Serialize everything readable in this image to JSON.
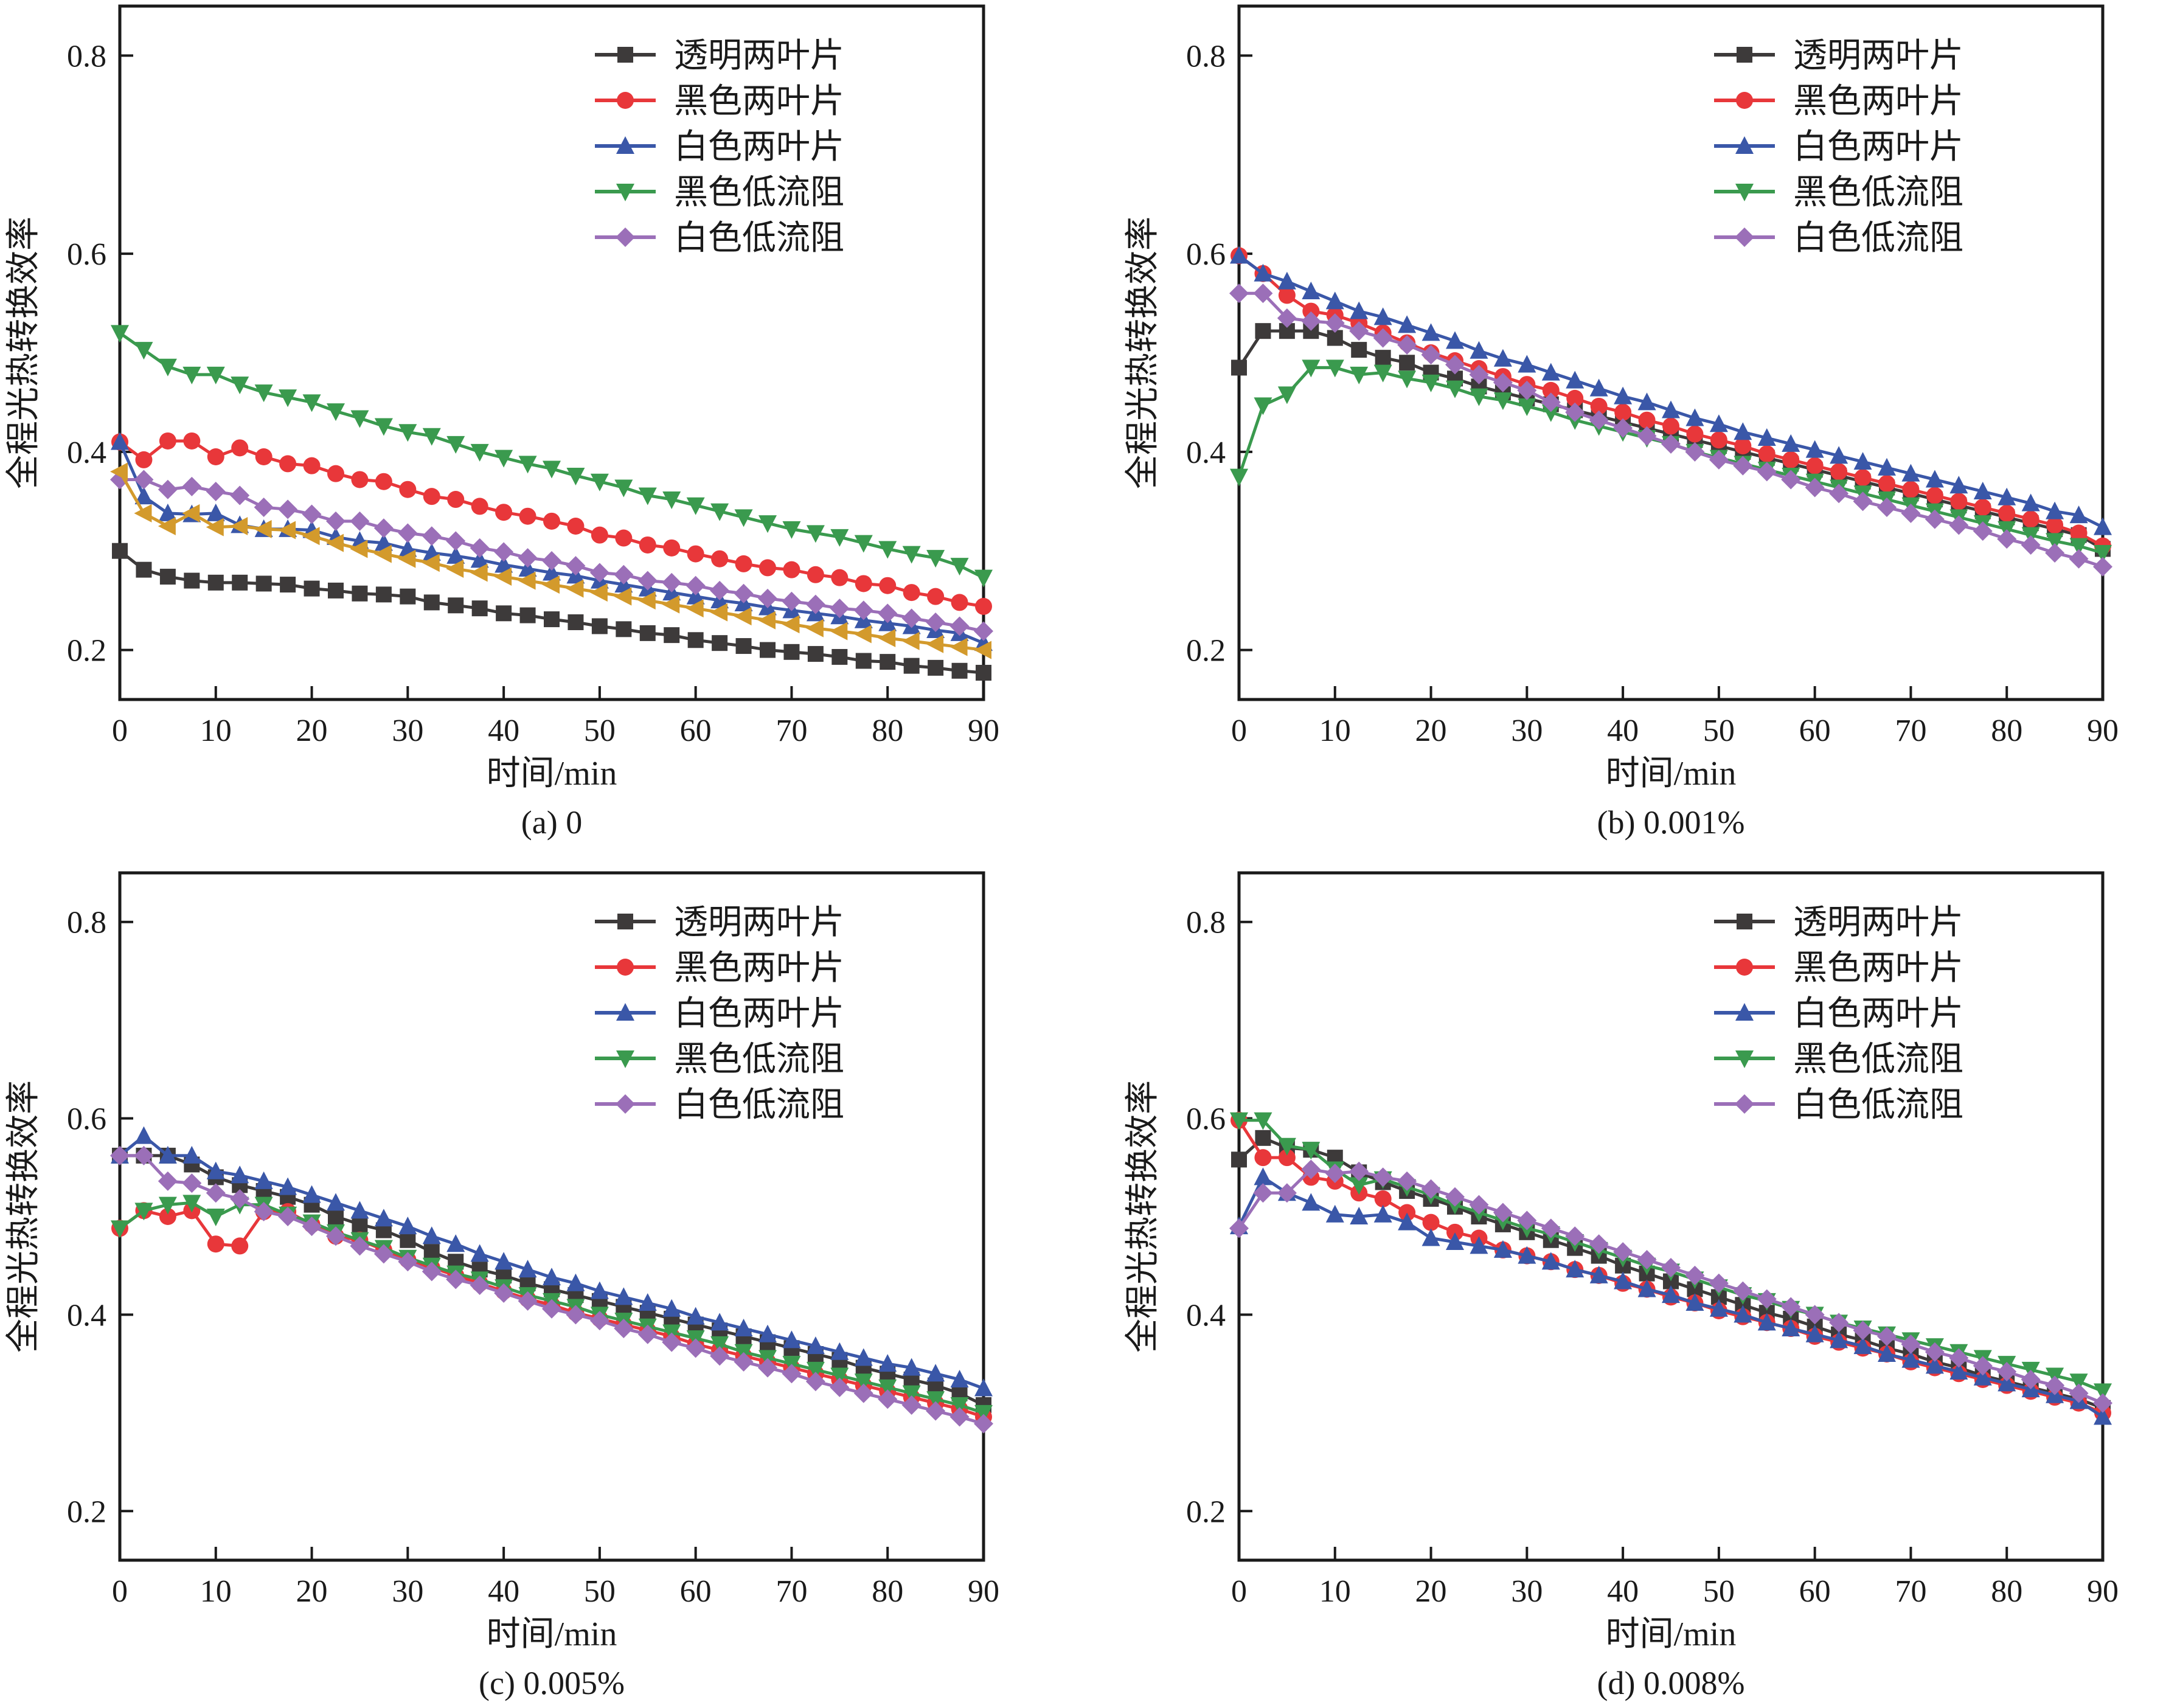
{
  "chart_data": [
    {
      "type": "line",
      "caption": "(a) 0",
      "xlabel": "时间/min",
      "ylabel": "全程光热转换效率",
      "xlim": [
        0,
        90
      ],
      "ylim": [
        0.15,
        0.85
      ],
      "xticks": [
        0,
        10,
        20,
        30,
        40,
        50,
        60,
        70,
        80,
        90
      ],
      "yticks": [
        0.2,
        0.4,
        0.6,
        0.8
      ],
      "legend_position": "top-right",
      "x_step": 2.5,
      "series": [
        {
          "name": "透明两叶片",
          "color": "#3d3a3a",
          "marker": "square",
          "values": [
            0.3,
            0.281,
            0.274,
            0.27,
            0.268,
            0.268,
            0.267,
            0.266,
            0.262,
            0.26,
            0.257,
            0.256,
            0.254,
            0.248,
            0.245,
            0.242,
            0.237,
            0.235,
            0.231,
            0.228,
            0.224,
            0.221,
            0.217,
            0.215,
            0.21,
            0.207,
            0.204,
            0.2,
            0.198,
            0.196,
            0.193,
            0.189,
            0.188,
            0.184,
            0.182,
            0.179,
            0.177
          ]
        },
        {
          "name": "黑色两叶片",
          "color": "#e8373a",
          "marker": "circle",
          "values": [
            0.41,
            0.392,
            0.411,
            0.411,
            0.395,
            0.404,
            0.395,
            0.388,
            0.386,
            0.378,
            0.372,
            0.37,
            0.362,
            0.355,
            0.352,
            0.345,
            0.339,
            0.335,
            0.33,
            0.325,
            0.316,
            0.313,
            0.306,
            0.303,
            0.297,
            0.292,
            0.287,
            0.283,
            0.281,
            0.276,
            0.273,
            0.267,
            0.265,
            0.258,
            0.254,
            0.248,
            0.244
          ]
        },
        {
          "name": "白色两叶片",
          "color": "#3a57a8",
          "marker": "triangle-up",
          "values": [
            0.41,
            0.355,
            0.338,
            0.337,
            0.338,
            0.326,
            0.322,
            0.322,
            0.321,
            0.314,
            0.31,
            0.308,
            0.302,
            0.298,
            0.295,
            0.291,
            0.286,
            0.282,
            0.278,
            0.275,
            0.27,
            0.266,
            0.262,
            0.258,
            0.254,
            0.25,
            0.247,
            0.243,
            0.24,
            0.237,
            0.234,
            0.23,
            0.227,
            0.224,
            0.22,
            0.217,
            0.207
          ]
        },
        {
          "name": "黑色低流阻",
          "color": "#3a9a4e",
          "marker": "triangle-down",
          "values": [
            0.52,
            0.503,
            0.486,
            0.478,
            0.478,
            0.468,
            0.46,
            0.455,
            0.45,
            0.441,
            0.434,
            0.426,
            0.42,
            0.416,
            0.408,
            0.4,
            0.394,
            0.388,
            0.383,
            0.376,
            0.37,
            0.364,
            0.356,
            0.352,
            0.346,
            0.34,
            0.334,
            0.328,
            0.322,
            0.318,
            0.314,
            0.308,
            0.302,
            0.297,
            0.293,
            0.285,
            0.273
          ]
        },
        {
          "name": "白色低流阻",
          "color": "#9b6fb8",
          "marker": "diamond",
          "values": [
            0.372,
            0.372,
            0.362,
            0.365,
            0.36,
            0.356,
            0.344,
            0.342,
            0.337,
            0.33,
            0.33,
            0.323,
            0.318,
            0.315,
            0.31,
            0.303,
            0.299,
            0.293,
            0.29,
            0.285,
            0.278,
            0.276,
            0.27,
            0.268,
            0.265,
            0.26,
            0.257,
            0.252,
            0.249,
            0.246,
            0.242,
            0.24,
            0.237,
            0.232,
            0.228,
            0.224,
            0.219
          ]
        },
        {
          "name": "",
          "color": "#d39a2c",
          "marker": "triangle-left",
          "values": [
            0.38,
            0.338,
            0.325,
            0.338,
            0.324,
            0.325,
            0.322,
            0.321,
            0.315,
            0.308,
            0.302,
            0.297,
            0.292,
            0.288,
            0.282,
            0.278,
            0.274,
            0.27,
            0.266,
            0.262,
            0.258,
            0.254,
            0.25,
            0.246,
            0.242,
            0.238,
            0.234,
            0.23,
            0.226,
            0.222,
            0.219,
            0.216,
            0.212,
            0.209,
            0.206,
            0.203,
            0.2
          ]
        }
      ]
    },
    {
      "type": "line",
      "caption": "(b) 0.001%",
      "xlabel": "时间/min",
      "ylabel": "全程光热转换效率",
      "xlim": [
        0,
        90
      ],
      "ylim": [
        0.15,
        0.85
      ],
      "xticks": [
        0,
        10,
        20,
        30,
        40,
        50,
        60,
        70,
        80,
        90
      ],
      "yticks": [
        0.2,
        0.4,
        0.6,
        0.8
      ],
      "legend_position": "top-right",
      "x_step": 2.5,
      "series": [
        {
          "name": "透明两叶片",
          "color": "#3d3a3a",
          "marker": "square",
          "values": [
            0.485,
            0.522,
            0.522,
            0.522,
            0.515,
            0.503,
            0.495,
            0.49,
            0.48,
            0.474,
            0.466,
            0.46,
            0.454,
            0.448,
            0.442,
            0.436,
            0.43,
            0.424,
            0.418,
            0.412,
            0.406,
            0.4,
            0.394,
            0.388,
            0.382,
            0.376,
            0.37,
            0.364,
            0.358,
            0.352,
            0.346,
            0.34,
            0.334,
            0.328,
            0.322,
            0.316,
            0.302
          ]
        },
        {
          "name": "黑色两叶片",
          "color": "#e8373a",
          "marker": "circle",
          "values": [
            0.598,
            0.58,
            0.558,
            0.542,
            0.538,
            0.53,
            0.52,
            0.51,
            0.5,
            0.492,
            0.484,
            0.476,
            0.468,
            0.462,
            0.454,
            0.446,
            0.44,
            0.432,
            0.426,
            0.418,
            0.412,
            0.406,
            0.398,
            0.392,
            0.386,
            0.38,
            0.374,
            0.368,
            0.362,
            0.356,
            0.35,
            0.344,
            0.338,
            0.332,
            0.326,
            0.318,
            0.305
          ]
        },
        {
          "name": "白色两叶片",
          "color": "#3a57a8",
          "marker": "triangle-up",
          "values": [
            0.598,
            0.58,
            0.572,
            0.562,
            0.552,
            0.542,
            0.536,
            0.528,
            0.52,
            0.512,
            0.502,
            0.494,
            0.488,
            0.48,
            0.472,
            0.464,
            0.456,
            0.45,
            0.442,
            0.434,
            0.428,
            0.42,
            0.414,
            0.408,
            0.402,
            0.396,
            0.39,
            0.384,
            0.378,
            0.372,
            0.366,
            0.36,
            0.354,
            0.348,
            0.34,
            0.336,
            0.324
          ]
        },
        {
          "name": "黑色低流阻",
          "color": "#3a9a4e",
          "marker": "triangle-down",
          "values": [
            0.375,
            0.447,
            0.458,
            0.485,
            0.485,
            0.478,
            0.48,
            0.474,
            0.47,
            0.464,
            0.456,
            0.452,
            0.446,
            0.44,
            0.432,
            0.426,
            0.42,
            0.414,
            0.408,
            0.4,
            0.394,
            0.388,
            0.382,
            0.376,
            0.37,
            0.364,
            0.358,
            0.352,
            0.346,
            0.34,
            0.334,
            0.328,
            0.322,
            0.316,
            0.31,
            0.305,
            0.298
          ]
        },
        {
          "name": "白色低流阻",
          "color": "#9b6fb8",
          "marker": "diamond",
          "values": [
            0.56,
            0.56,
            0.535,
            0.532,
            0.53,
            0.522,
            0.515,
            0.508,
            0.498,
            0.488,
            0.478,
            0.47,
            0.462,
            0.45,
            0.44,
            0.432,
            0.424,
            0.416,
            0.408,
            0.4,
            0.392,
            0.386,
            0.38,
            0.372,
            0.364,
            0.358,
            0.35,
            0.344,
            0.338,
            0.332,
            0.326,
            0.32,
            0.312,
            0.306,
            0.298,
            0.292,
            0.284
          ]
        }
      ]
    },
    {
      "type": "line",
      "caption": "(c) 0.005%",
      "xlabel": "时间/min",
      "ylabel": "全程光热转换效率",
      "xlim": [
        0,
        90
      ],
      "ylim": [
        0.15,
        0.85
      ],
      "xticks": [
        0,
        10,
        20,
        30,
        40,
        50,
        60,
        70,
        80,
        90
      ],
      "yticks": [
        0.2,
        0.4,
        0.6,
        0.8
      ],
      "legend_position": "top-right",
      "x_step": 2.5,
      "series": [
        {
          "name": "透明两叶片",
          "color": "#3d3a3a",
          "marker": "square",
          "values": [
            0.562,
            0.562,
            0.562,
            0.553,
            0.54,
            0.532,
            0.526,
            0.52,
            0.512,
            0.5,
            0.492,
            0.486,
            0.476,
            0.464,
            0.454,
            0.446,
            0.44,
            0.432,
            0.426,
            0.42,
            0.414,
            0.408,
            0.402,
            0.396,
            0.39,
            0.384,
            0.378,
            0.372,
            0.366,
            0.36,
            0.354,
            0.346,
            0.34,
            0.334,
            0.328,
            0.32,
            0.308
          ]
        },
        {
          "name": "黑色两叶片",
          "color": "#e8373a",
          "marker": "circle",
          "values": [
            0.488,
            0.506,
            0.5,
            0.506,
            0.472,
            0.47,
            0.505,
            0.505,
            0.492,
            0.48,
            0.476,
            0.466,
            0.456,
            0.448,
            0.44,
            0.432,
            0.424,
            0.416,
            0.41,
            0.402,
            0.396,
            0.39,
            0.384,
            0.378,
            0.37,
            0.364,
            0.358,
            0.352,
            0.346,
            0.34,
            0.334,
            0.328,
            0.322,
            0.316,
            0.31,
            0.304,
            0.296
          ]
        },
        {
          "name": "白色两叶片",
          "color": "#3a57a8",
          "marker": "triangle-up",
          "values": [
            0.562,
            0.582,
            0.562,
            0.562,
            0.546,
            0.542,
            0.536,
            0.53,
            0.522,
            0.514,
            0.506,
            0.498,
            0.49,
            0.48,
            0.472,
            0.462,
            0.454,
            0.446,
            0.438,
            0.432,
            0.424,
            0.418,
            0.412,
            0.406,
            0.398,
            0.392,
            0.386,
            0.38,
            0.374,
            0.368,
            0.362,
            0.356,
            0.35,
            0.346,
            0.34,
            0.334,
            0.325
          ]
        },
        {
          "name": "黑色低流阻",
          "color": "#3a9a4e",
          "marker": "triangle-down",
          "values": [
            0.488,
            0.506,
            0.512,
            0.514,
            0.5,
            0.512,
            0.512,
            0.502,
            0.494,
            0.484,
            0.476,
            0.468,
            0.458,
            0.45,
            0.442,
            0.436,
            0.428,
            0.42,
            0.414,
            0.408,
            0.4,
            0.394,
            0.388,
            0.382,
            0.376,
            0.37,
            0.362,
            0.356,
            0.35,
            0.344,
            0.338,
            0.332,
            0.326,
            0.32,
            0.314,
            0.308,
            0.3
          ]
        },
        {
          "name": "白色低流阻",
          "color": "#9b6fb8",
          "marker": "diamond",
          "values": [
            0.562,
            0.562,
            0.536,
            0.534,
            0.524,
            0.518,
            0.505,
            0.5,
            0.49,
            0.48,
            0.47,
            0.462,
            0.454,
            0.444,
            0.436,
            0.43,
            0.422,
            0.414,
            0.406,
            0.4,
            0.394,
            0.386,
            0.38,
            0.372,
            0.366,
            0.358,
            0.352,
            0.346,
            0.34,
            0.332,
            0.326,
            0.32,
            0.314,
            0.308,
            0.302,
            0.296,
            0.289
          ]
        }
      ]
    },
    {
      "type": "line",
      "caption": "(d) 0.008%",
      "xlabel": "时间/min",
      "ylabel": "全程光热转换效率",
      "xlim": [
        0,
        90
      ],
      "ylim": [
        0.15,
        0.85
      ],
      "xticks": [
        0,
        10,
        20,
        30,
        40,
        50,
        60,
        70,
        80,
        90
      ],
      "yticks": [
        0.2,
        0.4,
        0.6,
        0.8
      ],
      "legend_position": "top-right",
      "x_step": 2.5,
      "series": [
        {
          "name": "透明两叶片",
          "color": "#3d3a3a",
          "marker": "square",
          "values": [
            0.558,
            0.58,
            0.57,
            0.568,
            0.56,
            0.545,
            0.535,
            0.526,
            0.518,
            0.51,
            0.5,
            0.492,
            0.484,
            0.476,
            0.468,
            0.46,
            0.45,
            0.442,
            0.434,
            0.426,
            0.418,
            0.41,
            0.402,
            0.396,
            0.388,
            0.38,
            0.374,
            0.366,
            0.36,
            0.352,
            0.346,
            0.338,
            0.332,
            0.326,
            0.32,
            0.314,
            0.305
          ]
        },
        {
          "name": "黑色两叶片",
          "color": "#e8373a",
          "marker": "circle",
          "values": [
            0.598,
            0.56,
            0.56,
            0.54,
            0.536,
            0.524,
            0.518,
            0.504,
            0.494,
            0.484,
            0.478,
            0.466,
            0.46,
            0.454,
            0.446,
            0.44,
            0.432,
            0.426,
            0.418,
            0.412,
            0.404,
            0.398,
            0.392,
            0.386,
            0.378,
            0.372,
            0.366,
            0.36,
            0.352,
            0.346,
            0.34,
            0.334,
            0.328,
            0.322,
            0.316,
            0.31,
            0.3
          ]
        },
        {
          "name": "白色两叶片",
          "color": "#3a57a8",
          "marker": "triangle-up",
          "values": [
            0.49,
            0.54,
            0.524,
            0.514,
            0.502,
            0.5,
            0.502,
            0.494,
            0.478,
            0.474,
            0.47,
            0.466,
            0.46,
            0.454,
            0.446,
            0.44,
            0.434,
            0.426,
            0.42,
            0.412,
            0.406,
            0.4,
            0.392,
            0.386,
            0.38,
            0.374,
            0.368,
            0.36,
            0.354,
            0.348,
            0.342,
            0.336,
            0.33,
            0.324,
            0.318,
            0.312,
            0.296
          ]
        },
        {
          "name": "黑色低流阻",
          "color": "#3a9a4e",
          "marker": "triangle-down",
          "values": [
            0.598,
            0.598,
            0.572,
            0.568,
            0.548,
            0.532,
            0.538,
            0.53,
            0.522,
            0.512,
            0.504,
            0.496,
            0.488,
            0.482,
            0.474,
            0.466,
            0.458,
            0.45,
            0.444,
            0.436,
            0.428,
            0.42,
            0.414,
            0.406,
            0.4,
            0.392,
            0.386,
            0.38,
            0.374,
            0.368,
            0.362,
            0.356,
            0.35,
            0.344,
            0.338,
            0.332,
            0.322
          ]
        },
        {
          "name": "白色低流阻",
          "color": "#9b6fb8",
          "marker": "diamond",
          "values": [
            0.488,
            0.524,
            0.524,
            0.548,
            0.544,
            0.546,
            0.54,
            0.536,
            0.528,
            0.52,
            0.512,
            0.504,
            0.496,
            0.488,
            0.48,
            0.472,
            0.464,
            0.456,
            0.448,
            0.44,
            0.432,
            0.424,
            0.416,
            0.408,
            0.4,
            0.392,
            0.384,
            0.378,
            0.37,
            0.362,
            0.356,
            0.348,
            0.342,
            0.334,
            0.328,
            0.32,
            0.31
          ]
        }
      ]
    }
  ]
}
